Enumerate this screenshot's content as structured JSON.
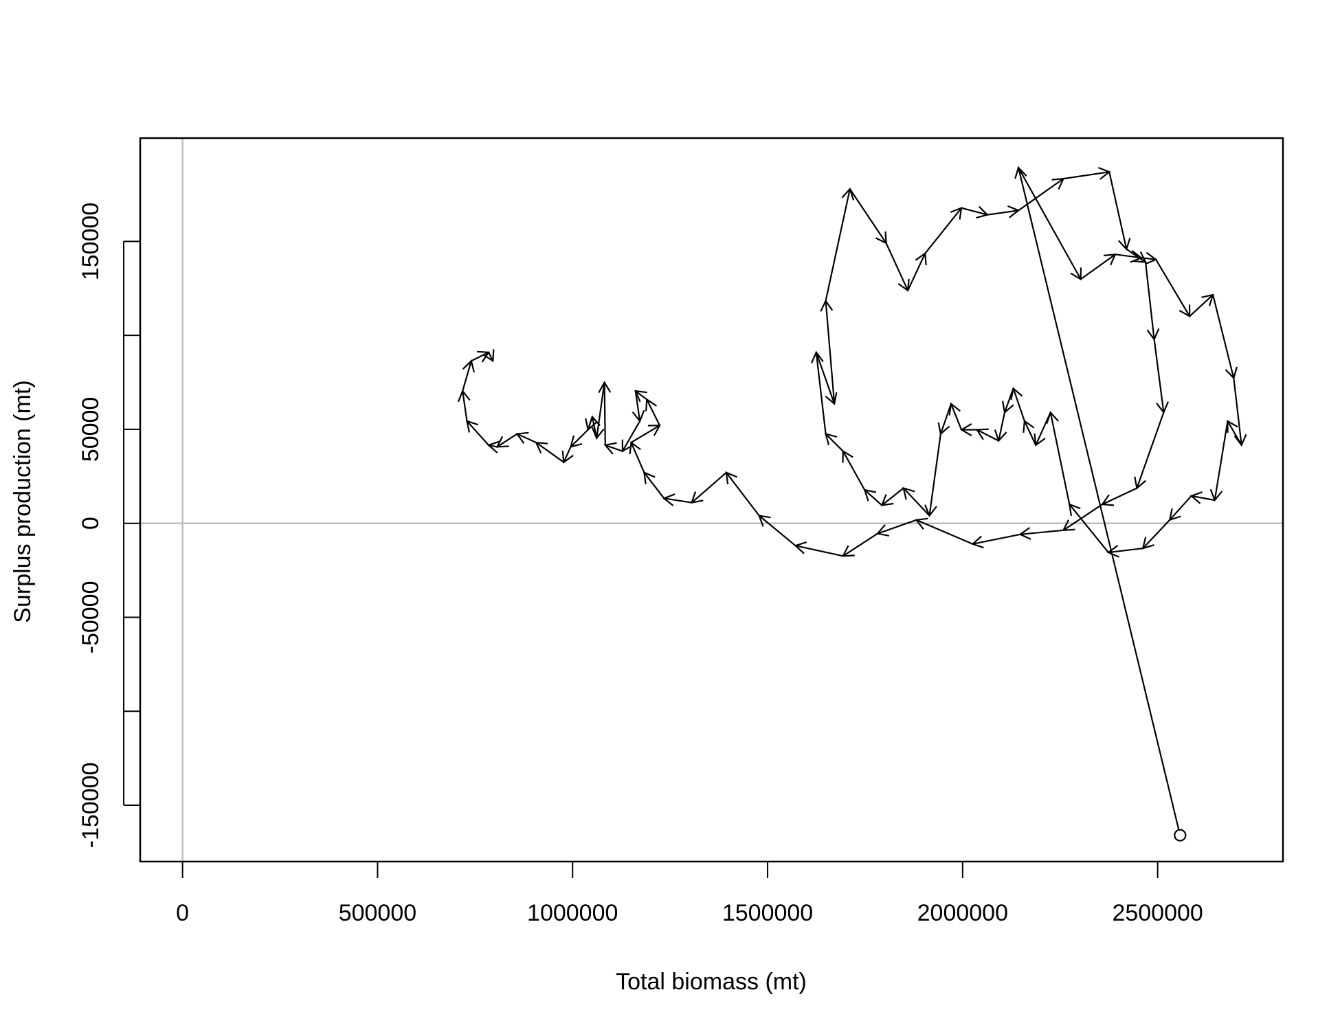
{
  "chart_data": {
    "type": "phase",
    "x_label": "Total biomass (mt)",
    "y_label": "Surplus production (mt)",
    "x": [
      2557600,
      2143000,
      2302800,
      2391400,
      2457900,
      2495500,
      2582000,
      2641800,
      2695000,
      2715000,
      2679500,
      2646300,
      2586400,
      2531000,
      2462300,
      2373700,
      2273900,
      2225200,
      2187500,
      2158700,
      2129900,
      2107700,
      2092200,
      2036800,
      1996900,
      1970300,
      1943700,
      1914900,
      1848400,
      1793000,
      1748700,
      1693300,
      1648900,
      1624600,
      1671100,
      1648900,
      1711000,
      1804100,
      1859500,
      1903800,
      1996900,
      2063400,
      2143200,
      2258400,
      2375900,
      2420200,
      2469000,
      2491200,
      2515500,
      2446800,
      2358200,
      2258400,
      2147600,
      2025700,
      1881600,
      1781900,
      1693300,
      1571400,
      1478300,
      1394100,
      1305400,
      1234500,
      1183500,
      1150300,
      1223400,
      1190200,
      1161300,
      1172400,
      1128100,
      1083800,
      1081600,
      1061600,
      1050500,
      1039500,
      995100,
      977400,
      906500,
      857700,
      806700,
      784600,
      729200,
      718100,
      740300,
      784600,
      795700
    ],
    "y": [
      -166000,
      189300,
      129900,
      143100,
      141300,
      140400,
      110200,
      121600,
      77300,
      41600,
      54400,
      12300,
      14600,
      1800,
      -13300,
      -15500,
      10100,
      59000,
      41600,
      54400,
      71800,
      59000,
      43900,
      49800,
      49800,
      63600,
      47600,
      4100,
      18700,
      9600,
      17800,
      38400,
      47600,
      91000,
      63600,
      118400,
      177900,
      149100,
      123900,
      143600,
      167800,
      164200,
      166500,
      183400,
      187000,
      145900,
      139000,
      97900,
      59000,
      18700,
      10100,
      -3700,
      -5900,
      -11000,
      1800,
      -5500,
      -17400,
      -11900,
      4100,
      27000,
      11000,
      13300,
      27000,
      43000,
      52100,
      65900,
      70400,
      54400,
      38400,
      41600,
      75000,
      45300,
      56700,
      49800,
      40700,
      32500,
      43000,
      47600,
      40700,
      41600,
      54400,
      70400,
      86400,
      91000,
      86400
    ],
    "color": "#000000",
    "xlim": [
      -108600,
      2821300
    ],
    "ylim": [
      -180000,
      205000
    ],
    "xticks": [
      0,
      500000,
      1000000,
      1500000,
      2000000,
      2500000
    ],
    "yticks": [
      -150000,
      -50000,
      0,
      50000,
      150000
    ],
    "yticks_unlabeled": [
      -100000,
      100000
    ],
    "reference_lines": {
      "x": 0,
      "y": 0,
      "color": "#bebebe"
    }
  }
}
